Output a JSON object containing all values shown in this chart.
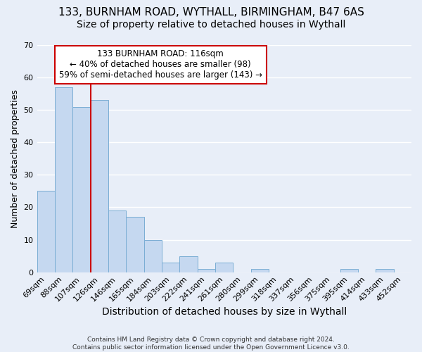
{
  "title1": "133, BURNHAM ROAD, WYTHALL, BIRMINGHAM, B47 6AS",
  "title2": "Size of property relative to detached houses in Wythall",
  "xlabel": "Distribution of detached houses by size in Wythall",
  "ylabel": "Number of detached properties",
  "categories": [
    "69sqm",
    "88sqm",
    "107sqm",
    "126sqm",
    "146sqm",
    "165sqm",
    "184sqm",
    "203sqm",
    "222sqm",
    "241sqm",
    "261sqm",
    "280sqm",
    "299sqm",
    "318sqm",
    "337sqm",
    "356sqm",
    "375sqm",
    "395sqm",
    "414sqm",
    "433sqm",
    "452sqm"
  ],
  "values": [
    25,
    57,
    51,
    53,
    19,
    17,
    10,
    3,
    5,
    1,
    3,
    0,
    1,
    0,
    0,
    0,
    0,
    1,
    0,
    1,
    0
  ],
  "bar_color": "#c5d8f0",
  "bar_edge_color": "#7aadd4",
  "vline_x_index": 2.5,
  "vline_color": "#cc0000",
  "annotation_text": "133 BURNHAM ROAD: 116sqm\n← 40% of detached houses are smaller (98)\n59% of semi-detached houses are larger (143) →",
  "annotation_box_color": "#ffffff",
  "annotation_box_edge_color": "#cc0000",
  "ylim": [
    0,
    70
  ],
  "yticks": [
    0,
    10,
    20,
    30,
    40,
    50,
    60,
    70
  ],
  "footer_text": "Contains HM Land Registry data © Crown copyright and database right 2024.\nContains public sector information licensed under the Open Government Licence v3.0.",
  "background_color": "#e8eef8",
  "plot_background_color": "#e8eef8",
  "grid_color": "#ffffff",
  "title1_fontsize": 11,
  "title2_fontsize": 10,
  "tick_fontsize": 8,
  "ylabel_fontsize": 9,
  "xlabel_fontsize": 10
}
